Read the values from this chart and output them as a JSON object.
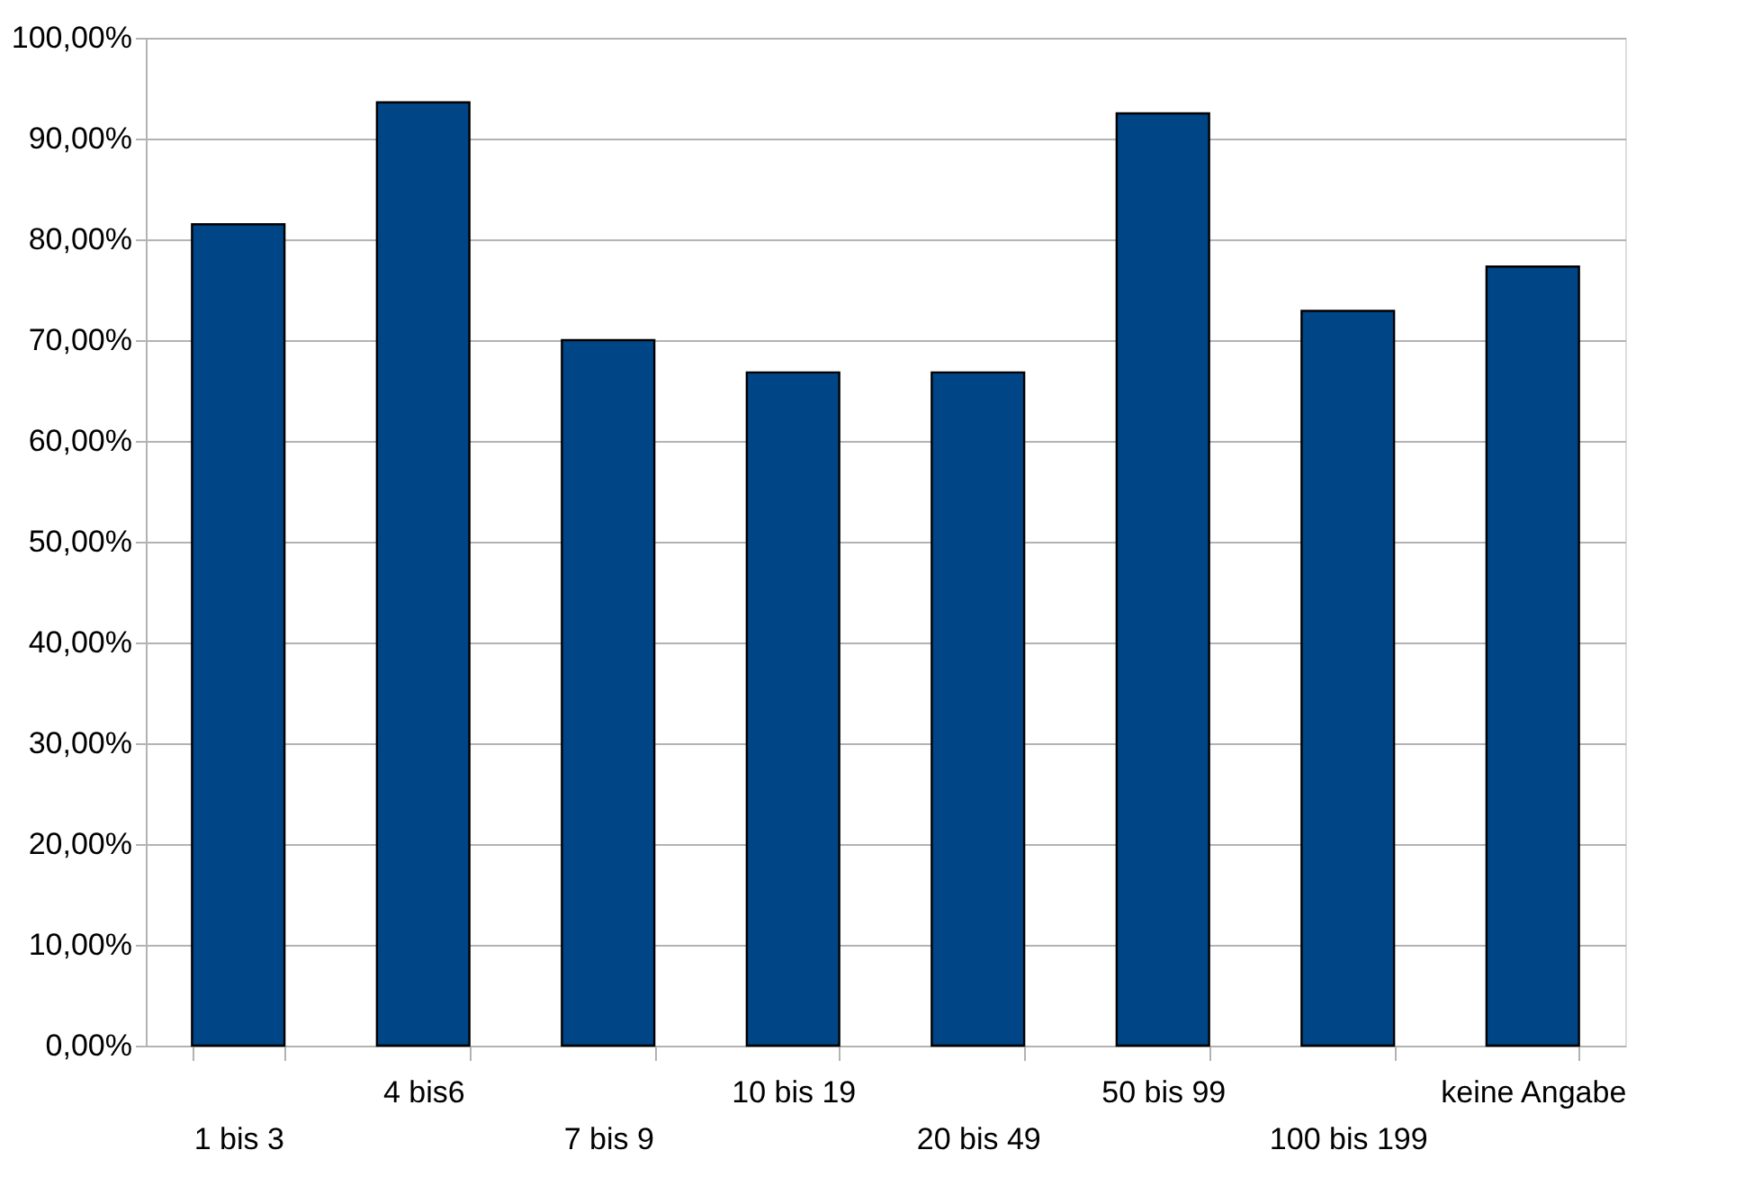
{
  "chart_data": {
    "type": "bar",
    "categories": [
      "1 bis 3",
      "4 bis6",
      "7 bis 9",
      "10 bis 19",
      "20 bis 49",
      "50 bis 99",
      "100 bis 199",
      "keine Angabe"
    ],
    "values": [
      81.5,
      93.6,
      70.0,
      66.8,
      66.8,
      92.5,
      72.9,
      77.3
    ],
    "color": "#004586",
    "ylim": [
      0,
      100
    ],
    "yticks": [
      {
        "value": 0,
        "label": "0,00%"
      },
      {
        "value": 10,
        "label": "10,00%"
      },
      {
        "value": 20,
        "label": "20,00%"
      },
      {
        "value": 30,
        "label": "30,00%"
      },
      {
        "value": 40,
        "label": "40,00%"
      },
      {
        "value": 50,
        "label": "50,00%"
      },
      {
        "value": 60,
        "label": "60,00%"
      },
      {
        "value": 70,
        "label": "70,00%"
      },
      {
        "value": 80,
        "label": "80,00%"
      },
      {
        "value": 90,
        "label": "90,00%"
      },
      {
        "value": 100,
        "label": "100,00%"
      }
    ],
    "grid": "y"
  }
}
